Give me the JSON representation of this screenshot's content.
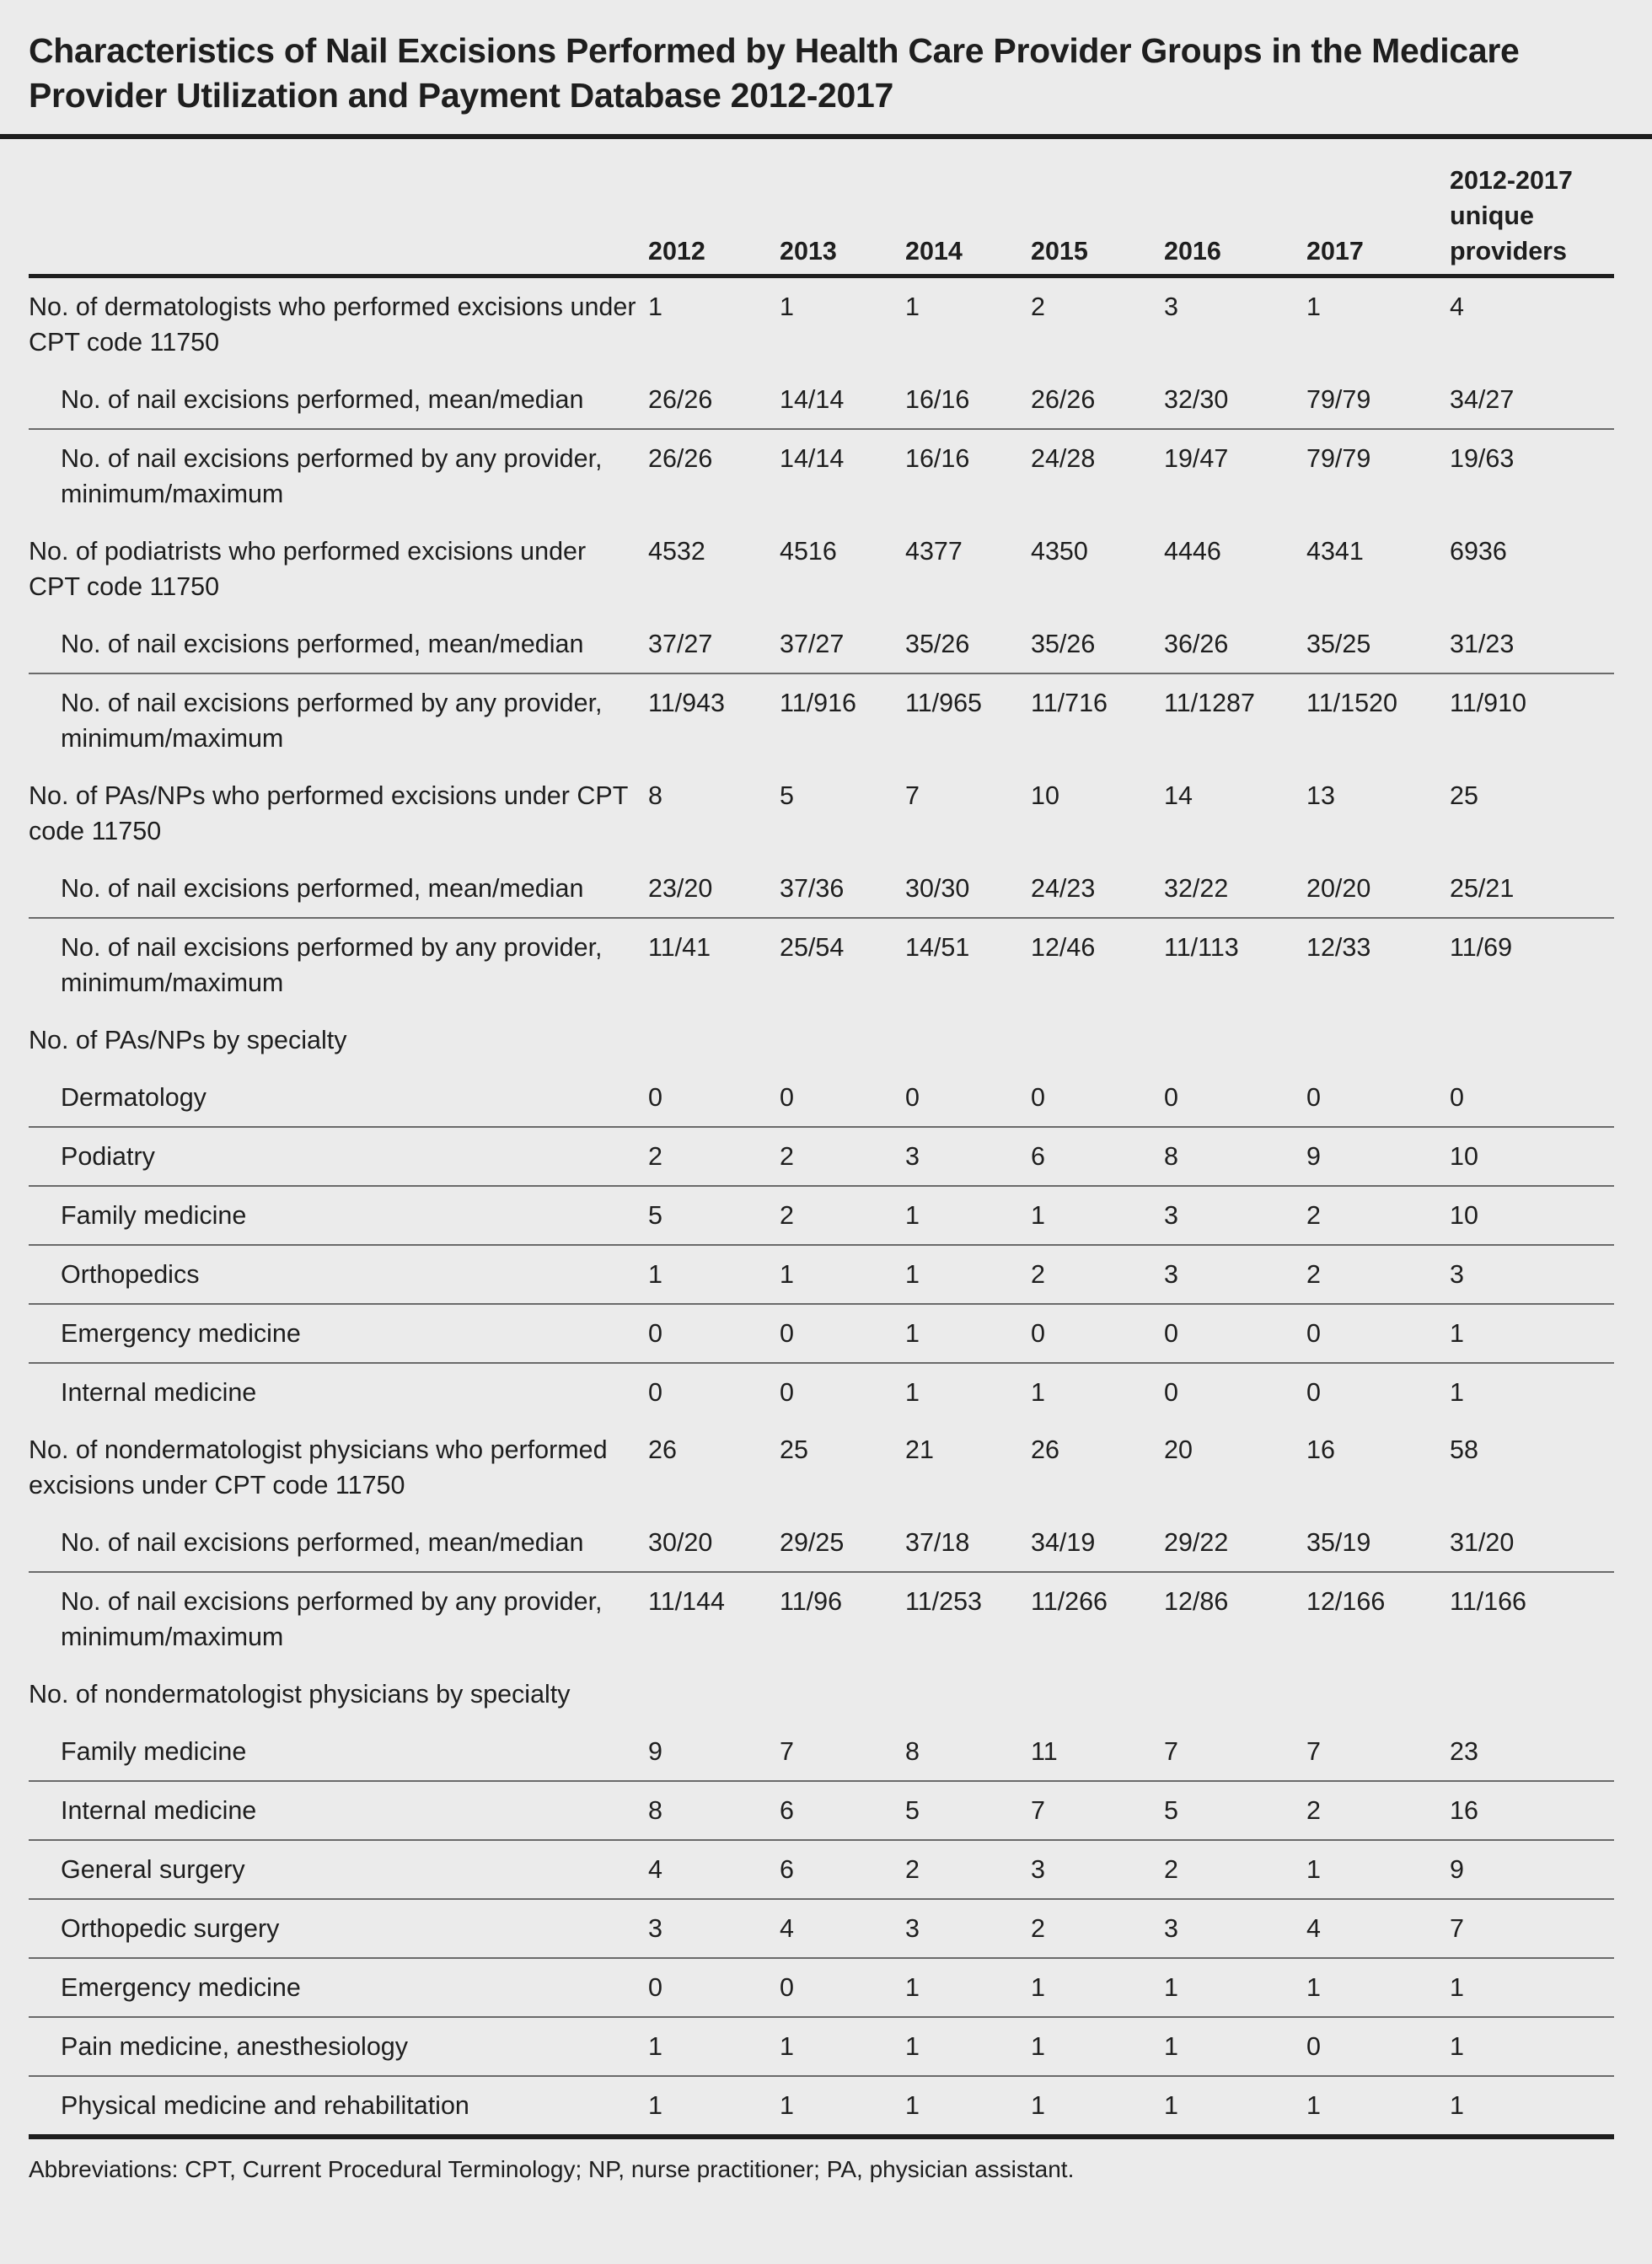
{
  "title": "Characteristics of Nail Excisions Performed by Health Care Provider Groups in the Medicare Provider Utilization and Payment Database 2012-2017",
  "table": {
    "header": [
      "2012",
      "2013",
      "2014",
      "2015",
      "2016",
      "2017",
      "2012-2017 unique providers"
    ],
    "rows": [
      {
        "label": "No. of dermatologists who performed excisions under CPT code 11750",
        "values": [
          1,
          1,
          1,
          2,
          3,
          1,
          4
        ],
        "subrows": [
          {
            "label": "No. of nail excisions performed, mean/median",
            "values": [
              "26/26",
              "14/14",
              "16/16",
              "26/26",
              "32/30",
              "79/79",
              "34/27"
            ]
          },
          {
            "label": "No. of nail excisions performed by any provider, minimum/maximum",
            "values": [
              "26/26",
              "14/14",
              "16/16",
              "24/28",
              "19/47",
              "79/79",
              "19/63"
            ]
          }
        ]
      },
      {
        "label": "No. of podiatrists who performed excisions under CPT code 11750",
        "values": [
          4532,
          4516,
          4377,
          4350,
          4446,
          4341,
          6936
        ],
        "subrows": [
          {
            "label": "No. of nail excisions performed, mean/median",
            "values": [
              "37/27",
              "37/27",
              "35/26",
              "35/26",
              "36/26",
              "35/25",
              "31/23"
            ]
          },
          {
            "label": "No. of nail excisions performed by any provider, minimum/maximum",
            "values": [
              "11/943",
              "11/916",
              "11/965",
              "11/716",
              "11/1287",
              "11/1520",
              "11/910"
            ]
          }
        ]
      },
      {
        "label": "No. of PAs/NPs who performed excisions under CPT code 11750",
        "values": [
          8,
          5,
          7,
          10,
          14,
          13,
          25
        ],
        "subrows": [
          {
            "label": "No. of nail excisions performed, mean/median",
            "values": [
              "23/20",
              "37/36",
              "30/30",
              "24/23",
              "32/22",
              "20/20",
              "25/21"
            ]
          },
          {
            "label": "No. of nail excisions performed by any provider, minimum/maximum",
            "values": [
              "11/41",
              "25/54",
              "14/51",
              "12/46",
              "11/113",
              "12/33",
              "11/69"
            ]
          }
        ]
      },
      {
        "label": "No. of PAs/NPs by specialty",
        "subrows": [
          {
            "label": "Dermatology",
            "values": [
              0,
              0,
              0,
              0,
              0,
              0,
              0
            ]
          },
          {
            "label": "Podiatry",
            "values": [
              2,
              2,
              3,
              6,
              8,
              9,
              10
            ]
          },
          {
            "label": "Family medicine",
            "values": [
              5,
              2,
              1,
              1,
              3,
              2,
              10
            ]
          },
          {
            "label": "Orthopedics",
            "values": [
              1,
              1,
              1,
              2,
              3,
              2,
              3
            ]
          },
          {
            "label": "Emergency medicine",
            "values": [
              0,
              0,
              1,
              0,
              0,
              0,
              1
            ]
          },
          {
            "label": "Internal medicine",
            "values": [
              0,
              0,
              1,
              1,
              0,
              0,
              1
            ]
          }
        ]
      },
      {
        "label": "No. of nondermatologist physicians who performed excisions under CPT code 11750",
        "values": [
          26,
          25,
          21,
          26,
          20,
          16,
          58
        ],
        "subrows": [
          {
            "label": "No. of nail excisions performed, mean/median",
            "values": [
              "30/20",
              "29/25",
              "37/18",
              "34/19",
              "29/22",
              "35/19",
              "31/20"
            ]
          },
          {
            "label": "No. of nail excisions performed by any provider, minimum/maximum",
            "values": [
              "11/144",
              "11/96",
              "11/253",
              "11/266",
              "12/86",
              "12/166",
              "11/166"
            ]
          }
        ]
      },
      {
        "label": "No. of nondermatologist physicians by specialty",
        "subrows": [
          {
            "label": "Family medicine",
            "values": [
              9,
              7,
              8,
              11,
              7,
              7,
              23
            ]
          },
          {
            "label": "Internal medicine",
            "values": [
              8,
              6,
              5,
              7,
              5,
              2,
              16
            ]
          },
          {
            "label": "General surgery",
            "values": [
              4,
              6,
              2,
              3,
              2,
              1,
              9
            ]
          },
          {
            "label": "Orthopedic surgery",
            "values": [
              3,
              4,
              3,
              2,
              3,
              4,
              7
            ]
          },
          {
            "label": "Emergency medicine",
            "values": [
              0,
              0,
              1,
              1,
              1,
              1,
              1
            ]
          },
          {
            "label": "Pain medicine, anesthesiology",
            "values": [
              1,
              1,
              1,
              1,
              1,
              0,
              1
            ]
          },
          {
            "label": "Physical medicine and rehabilitation",
            "values": [
              1,
              1,
              1,
              1,
              1,
              1,
              1
            ]
          }
        ]
      }
    ]
  },
  "footnote": "Abbreviations: CPT, Current Procedural Terminology; NP, nurse practitioner; PA, physician assistant."
}
